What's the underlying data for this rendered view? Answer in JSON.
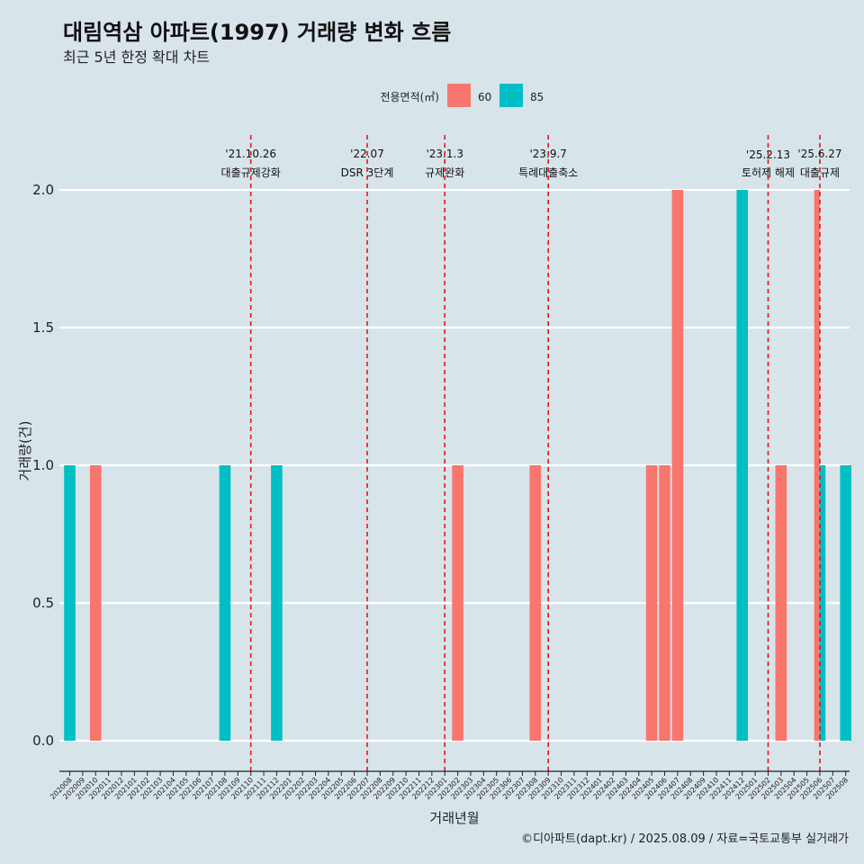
{
  "header": {
    "title": "대림역삼 아파트(1997) 거래량 변화 흐름",
    "subtitle": "최근 5년 한정 확대 차트"
  },
  "legend": {
    "title": "전용면적(㎡)",
    "items": [
      {
        "label": "60",
        "color": "#F8766D"
      },
      {
        "label": "85",
        "color": "#00BFC4"
      }
    ]
  },
  "caption": "©디아파트(dapt.kr) / 2025.08.09 / 자료=국토교통부 실거래가",
  "chart_data": {
    "type": "bar",
    "xlabel": "거래년월",
    "ylabel": "거래량(건)",
    "ylim": [
      0,
      2
    ],
    "yticks": [
      "0.0",
      "0.5",
      "1.0",
      "1.5",
      "2.0"
    ],
    "grid": true,
    "legend_position": "top",
    "categories": [
      "202008",
      "202009",
      "202010",
      "202011",
      "202012",
      "202101",
      "202102",
      "202103",
      "202104",
      "202105",
      "202106",
      "202107",
      "202108",
      "202109",
      "202110",
      "202111",
      "202112",
      "202201",
      "202202",
      "202203",
      "202204",
      "202205",
      "202206",
      "202207",
      "202208",
      "202209",
      "202210",
      "202211",
      "202212",
      "202301",
      "202302",
      "202303",
      "202304",
      "202305",
      "202306",
      "202307",
      "202308",
      "202309",
      "202310",
      "202311",
      "202312",
      "202401",
      "202402",
      "202403",
      "202404",
      "202405",
      "202406",
      "202407",
      "202408",
      "202409",
      "202410",
      "202411",
      "202412",
      "202501",
      "202502",
      "202503",
      "202504",
      "202505",
      "202506",
      "202507",
      "202508"
    ],
    "bars": [
      {
        "month": "202008",
        "series": "85",
        "value": 1
      },
      {
        "month": "202010",
        "series": "60",
        "value": 1
      },
      {
        "month": "202108",
        "series": "85",
        "value": 1
      },
      {
        "month": "202112",
        "series": "85",
        "value": 1
      },
      {
        "month": "202302",
        "series": "60",
        "value": 1
      },
      {
        "month": "202308",
        "series": "60",
        "value": 1
      },
      {
        "month": "202405",
        "series": "60",
        "value": 1
      },
      {
        "month": "202406",
        "series": "60",
        "value": 1
      },
      {
        "month": "202407",
        "series": "60",
        "value": 2
      },
      {
        "month": "202412",
        "series": "85",
        "value": 2
      },
      {
        "month": "202503",
        "series": "60",
        "value": 1
      },
      {
        "month": "202506",
        "series": "60",
        "value": 2
      },
      {
        "month": "202506",
        "series": "85",
        "value": 1
      },
      {
        "month": "202508",
        "series": "85",
        "value": 1
      }
    ],
    "events": [
      {
        "month": "202110",
        "date": "'21.10.26",
        "label": "대출규제강화"
      },
      {
        "month": "202207",
        "date": "'22.07",
        "label": "DSR 3단계"
      },
      {
        "month": "202301",
        "date": "'23.1.3",
        "label": "규제완화"
      },
      {
        "month": "202309",
        "date": "'23.9.7",
        "label": "특례대출축소"
      },
      {
        "month": "202502",
        "date": "'25.2.13",
        "label": "토허제 해제"
      },
      {
        "month": "202506",
        "date": "'25.6.27",
        "label": "대출규제"
      }
    ]
  }
}
